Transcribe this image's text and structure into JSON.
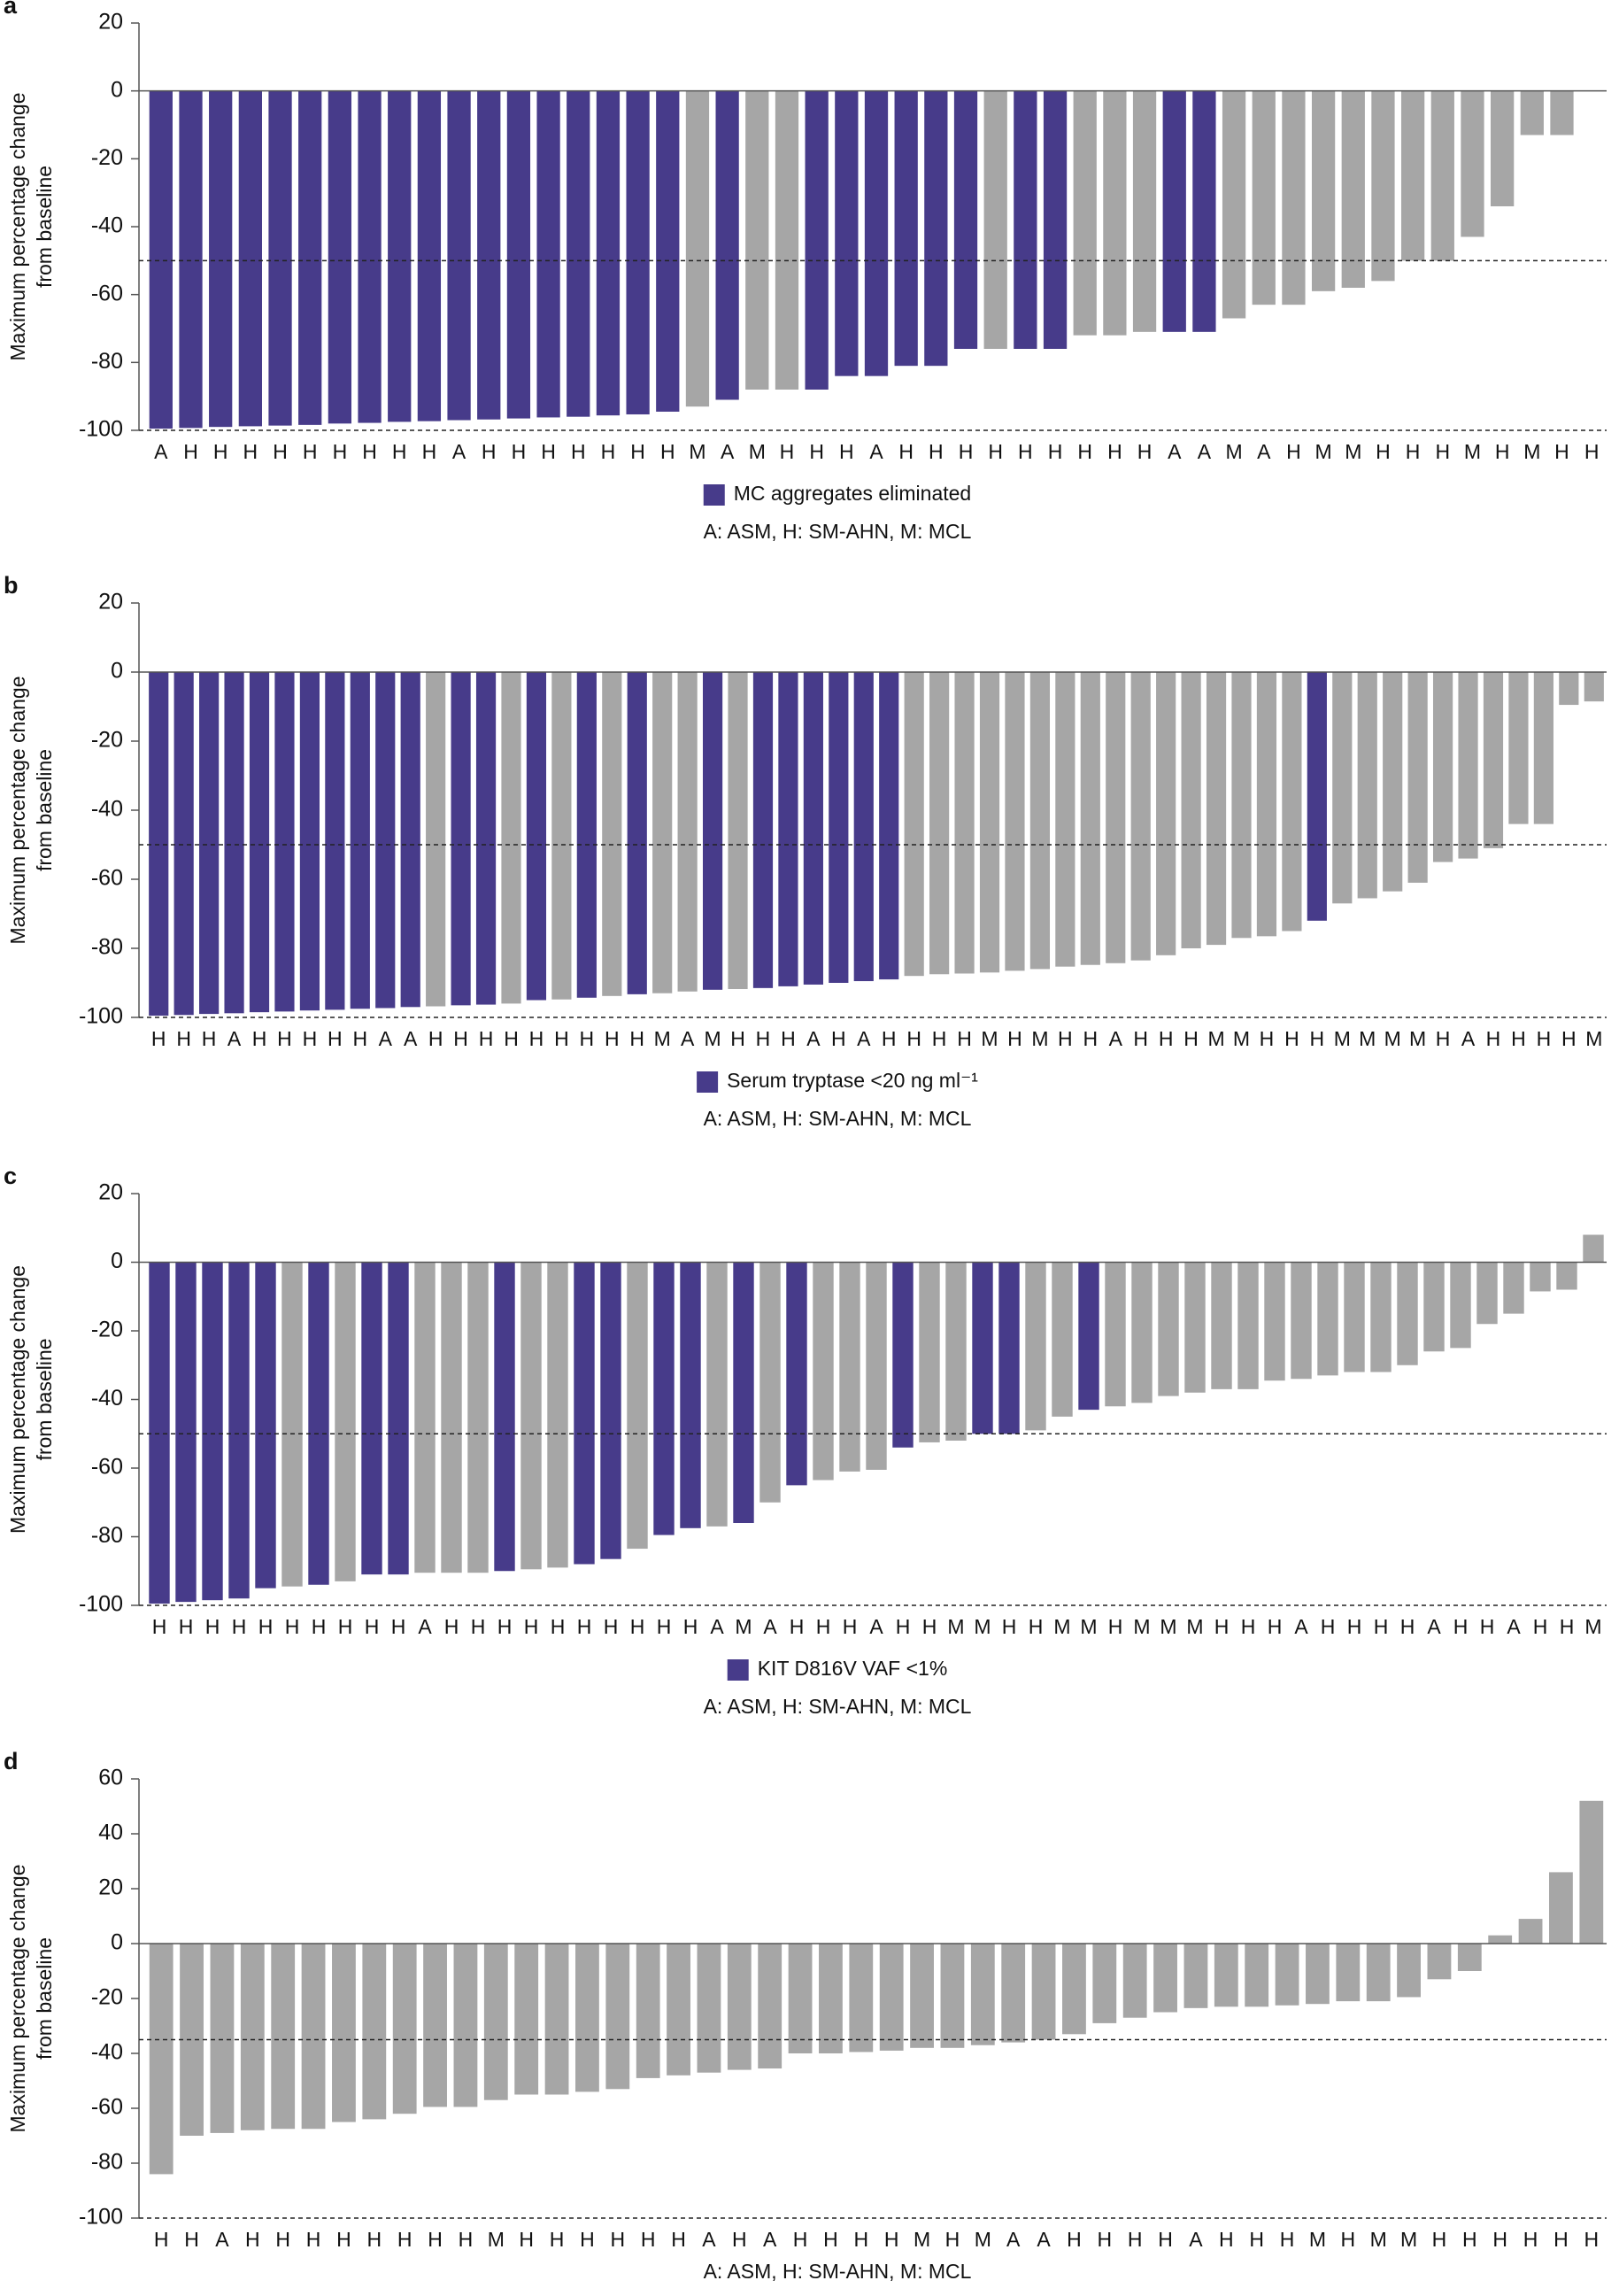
{
  "chart_data": [
    {
      "type": "bar",
      "panel": "a",
      "ylabel": [
        "Maximum percentage change",
        "from baseline"
      ],
      "categories": [
        "A",
        "H",
        "H",
        "H",
        "H",
        "H",
        "H",
        "H",
        "H",
        "H",
        "A",
        "H",
        "H",
        "H",
        "H",
        "H",
        "H",
        "H",
        "M",
        "A",
        "M",
        "H",
        "H",
        "H",
        "A",
        "H",
        "H",
        "H",
        "H",
        "H",
        "H",
        "H",
        "H",
        "H",
        "A",
        "A",
        "M",
        "A",
        "H",
        "M",
        "M",
        "H",
        "H",
        "H",
        "M",
        "H",
        "M",
        "H",
        "H"
      ],
      "values": [
        -99.5,
        -99.3,
        -99,
        -98.8,
        -98.6,
        -98.4,
        -98,
        -97.8,
        -97.5,
        -97.3,
        -97,
        -96.8,
        -96.5,
        -96.2,
        -96,
        -95.6,
        -95.3,
        -94.5,
        -93,
        -91,
        -88,
        -88,
        -88,
        -84,
        -84,
        -81,
        -81,
        -76,
        -76,
        -76,
        -76,
        -72,
        -72,
        -71,
        -71,
        -71,
        -67,
        -63,
        -63,
        -59,
        -58,
        -56,
        -50,
        -50,
        -43,
        -34,
        -13,
        -13,
        0
      ],
      "highlight": [
        true,
        true,
        true,
        true,
        true,
        true,
        true,
        true,
        true,
        true,
        true,
        true,
        true,
        true,
        true,
        true,
        true,
        true,
        false,
        true,
        false,
        false,
        true,
        true,
        true,
        true,
        true,
        true,
        false,
        true,
        true,
        false,
        false,
        false,
        true,
        true,
        false,
        false,
        false,
        false,
        false,
        false,
        false,
        false,
        false,
        false,
        false,
        false,
        false
      ],
      "color": "#a6a6a6",
      "highlight_color": "#473b8a",
      "legend": "MC aggregates eliminated",
      "note": "A: ASM, H: SM-AHN, M: MCL",
      "reference_line": -50,
      "ylim": [
        -100,
        20
      ],
      "yticks": [
        -100,
        -80,
        -60,
        -40,
        -20,
        0,
        20
      ]
    },
    {
      "type": "bar",
      "panel": "b",
      "ylabel": [
        "Maximum percentage change",
        "from baseline"
      ],
      "categories": [
        "H",
        "H",
        "H",
        "A",
        "H",
        "H",
        "H",
        "H",
        "H",
        "A",
        "A",
        "H",
        "H",
        "H",
        "H",
        "H",
        "H",
        "H",
        "H",
        "H",
        "M",
        "A",
        "M",
        "H",
        "H",
        "H",
        "A",
        "H",
        "A",
        "H",
        "H",
        "H",
        "H",
        "M",
        "H",
        "M",
        "H",
        "H",
        "A",
        "H",
        "H",
        "H",
        "M",
        "M",
        "H",
        "H",
        "H",
        "M",
        "M",
        "M",
        "M",
        "H",
        "A",
        "H",
        "H",
        "H",
        "H",
        "M"
      ],
      "values": [
        -99.5,
        -99.3,
        -99,
        -98.8,
        -98.5,
        -98.3,
        -98,
        -97.8,
        -97.5,
        -97.3,
        -97,
        -96.8,
        -96.5,
        -96.3,
        -96,
        -95,
        -94.8,
        -94.3,
        -93.8,
        -93.3,
        -93,
        -92.5,
        -92,
        -91.8,
        -91.5,
        -91,
        -90.5,
        -90,
        -89.5,
        -89,
        -88,
        -87.5,
        -87.3,
        -87,
        -86.5,
        -86,
        -85.3,
        -84.8,
        -84.3,
        -83.5,
        -82,
        -80,
        -79,
        -77,
        -76.5,
        -75,
        -72,
        -67,
        -65.5,
        -63.5,
        -61,
        -55,
        -54,
        -51,
        -44,
        -44,
        -9.5,
        -8.5
      ],
      "highlight": [
        true,
        true,
        true,
        true,
        true,
        true,
        true,
        true,
        true,
        true,
        true,
        false,
        true,
        true,
        false,
        true,
        false,
        true,
        false,
        true,
        false,
        false,
        true,
        false,
        true,
        true,
        true,
        true,
        true,
        true,
        false,
        false,
        false,
        false,
        false,
        false,
        false,
        false,
        false,
        false,
        false,
        false,
        false,
        false,
        false,
        false,
        true,
        false,
        false,
        false,
        false,
        false,
        false,
        false,
        false,
        false,
        false,
        false
      ],
      "color": "#a6a6a6",
      "highlight_color": "#473b8a",
      "legend": "Serum tryptase <20 ng ml⁻¹",
      "note": "A: ASM, H: SM-AHN, M: MCL",
      "reference_line": -50,
      "ylim": [
        -100,
        20
      ],
      "yticks": [
        -100,
        -80,
        -60,
        -40,
        -20,
        0,
        20
      ]
    },
    {
      "type": "bar",
      "panel": "c",
      "ylabel": [
        "Maximum percentage change",
        "from baseline"
      ],
      "categories": [
        "H",
        "H",
        "H",
        "H",
        "H",
        "H",
        "H",
        "H",
        "H",
        "H",
        "A",
        "H",
        "H",
        "H",
        "H",
        "H",
        "H",
        "H",
        "H",
        "H",
        "H",
        "A",
        "M",
        "A",
        "H",
        "H",
        "H",
        "A",
        "H",
        "H",
        "M",
        "M",
        "H",
        "H",
        "M",
        "M",
        "H",
        "M",
        "M",
        "M",
        "H",
        "H",
        "H",
        "A",
        "H",
        "H",
        "H",
        "H",
        "A",
        "H",
        "H",
        "A",
        "H",
        "H",
        "M"
      ],
      "values": [
        -99.5,
        -99,
        -98.5,
        -98,
        -95,
        -94.5,
        -94,
        -93,
        -91,
        -91,
        -90.5,
        -90.5,
        -90.5,
        -90,
        -89.5,
        -89,
        -88,
        -86.5,
        -83.5,
        -79.5,
        -77.5,
        -77,
        -76,
        -70,
        -65,
        -63.5,
        -61,
        -60.5,
        -54,
        -52.5,
        -52,
        -50,
        -50,
        -49,
        -45,
        -43,
        -42,
        -41,
        -39,
        -38,
        -37,
        -37,
        -34.5,
        -34,
        -33,
        -32,
        -32,
        -30,
        -26,
        -25,
        -18,
        -15,
        -8.5,
        -8,
        8
      ],
      "highlight": [
        true,
        true,
        true,
        true,
        true,
        false,
        true,
        false,
        true,
        true,
        false,
        false,
        false,
        true,
        false,
        false,
        true,
        true,
        false,
        true,
        true,
        false,
        true,
        false,
        true,
        false,
        false,
        false,
        true,
        false,
        false,
        true,
        true,
        false,
        false,
        true,
        false,
        false,
        false,
        false,
        false,
        false,
        false,
        false,
        false,
        false,
        false,
        false,
        false,
        false,
        false,
        false,
        false,
        false,
        false
      ],
      "color": "#a6a6a6",
      "highlight_color": "#473b8a",
      "legend": "KIT D816V VAF <1%",
      "note": "A: ASM, H: SM-AHN, M: MCL",
      "reference_line": -50,
      "ylim": [
        -100,
        20
      ],
      "yticks": [
        -100,
        -80,
        -60,
        -40,
        -20,
        0,
        20
      ]
    },
    {
      "type": "bar",
      "panel": "d",
      "ylabel": [
        "Maximum percentage change",
        "from baseline"
      ],
      "categories": [
        "H",
        "H",
        "A",
        "H",
        "H",
        "H",
        "H",
        "H",
        "H",
        "H",
        "H",
        "M",
        "H",
        "H",
        "H",
        "H",
        "H",
        "H",
        "A",
        "H",
        "A",
        "H",
        "H",
        "H",
        "H",
        "M",
        "H",
        "M",
        "A",
        "A",
        "H",
        "H",
        "H",
        "H",
        "A",
        "H",
        "H",
        "H",
        "M",
        "H",
        "M",
        "M",
        "H",
        "H",
        "H",
        "H",
        "H",
        "H"
      ],
      "values": [
        -84,
        -70,
        -69,
        -68,
        -67.5,
        -67.5,
        -65,
        -64,
        -62,
        -59.5,
        -59.5,
        -57,
        -55,
        -55,
        -54,
        -53,
        -49,
        -48,
        -47,
        -46,
        -45.5,
        -40,
        -40,
        -39.5,
        -39,
        -38,
        -38,
        -37,
        -36,
        -35,
        -33,
        -29,
        -27,
        -25,
        -23.5,
        -23,
        -23,
        -22.5,
        -22,
        -21,
        -21,
        -19.5,
        -13,
        -10,
        3,
        9,
        26,
        52
      ],
      "color": "#a6a6a6",
      "note": "A: ASM, H: SM-AHN, M: MCL",
      "reference_line": -35,
      "ylim": [
        -100,
        60
      ],
      "yticks": [
        -100,
        -80,
        -60,
        -40,
        -20,
        0,
        20,
        40,
        60
      ]
    }
  ]
}
